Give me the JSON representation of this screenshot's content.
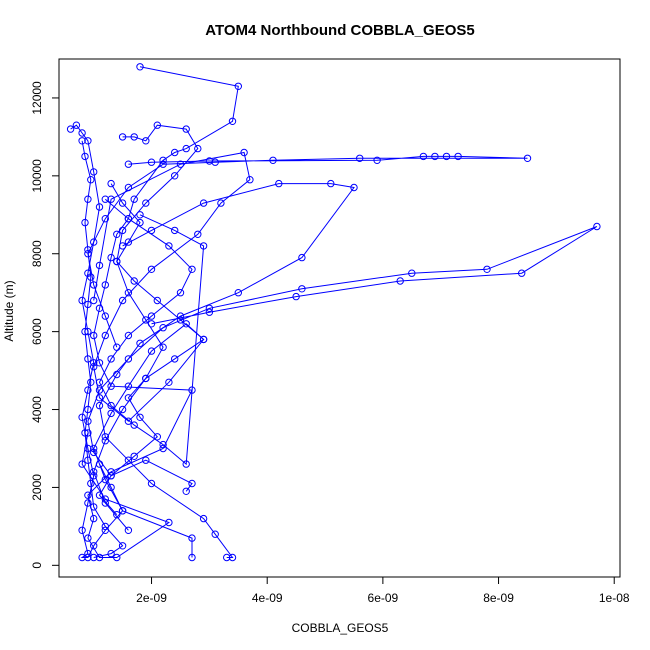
{
  "chart_data": {
    "type": "line",
    "title": "ATOM4 Northbound COBBLA_GEOS5",
    "xlabel": "COBBLA_GEOS5",
    "ylabel": "Altitude (m)",
    "xlim": [
      4e-10,
      1.01e-08
    ],
    "ylim": [
      -300,
      13000
    ],
    "x_ticks": [
      {
        "value": 2e-09,
        "label": "2e-09"
      },
      {
        "value": 4e-09,
        "label": "4e-09"
      },
      {
        "value": 6e-09,
        "label": "6e-09"
      },
      {
        "value": 8e-09,
        "label": "8e-09"
      },
      {
        "value": 1e-08,
        "label": "1e-08"
      }
    ],
    "y_ticks": [
      {
        "value": 0,
        "label": "0"
      },
      {
        "value": 2000,
        "label": "2000"
      },
      {
        "value": 4000,
        "label": "4000"
      },
      {
        "value": 6000,
        "label": "6000"
      },
      {
        "value": 8000,
        "label": "8000"
      },
      {
        "value": 10000,
        "label": "10000"
      },
      {
        "value": 12000,
        "label": "12000"
      }
    ],
    "grid": false,
    "colors": {
      "series": "#0000ff",
      "axes": "#000000",
      "background": "#ffffff"
    },
    "series": [
      {
        "marker": "open-circle",
        "x": [
          1.8e-09,
          3.5e-09,
          3.4e-09,
          2.6e-09,
          2.4e-09,
          2.2e-09,
          1.7e-09,
          1.6e-09,
          1.4e-09,
          1.3e-09,
          1.2e-09,
          1.1e-09,
          1e-09,
          1.1e-09,
          1.3e-09,
          2.7e-09,
          2.2e-09,
          1.3e-09,
          9e-10,
          1e-09,
          9e-10,
          1.1e-09,
          1.4e-09,
          2.3e-09,
          1.2e-09,
          8e-10,
          9e-10
        ],
        "y": [
          12800,
          12300,
          11400,
          10700,
          10600,
          10400,
          9400,
          8900,
          8500,
          7900,
          7200,
          6600,
          5900,
          5200,
          4600,
          4500,
          3000,
          2400,
          1800,
          1200,
          700,
          200,
          200,
          1100,
          1700,
          2600,
          3400
        ]
      },
      {
        "marker": "open-circle",
        "x": [
          1e-09,
          1.1e-09,
          1.3e-09,
          2.5e-09,
          3.6e-09,
          3.7e-09,
          3.2e-09,
          2.8e-09,
          2e-09,
          1.5e-09,
          1.2e-09,
          1e-09,
          1.1e-09,
          1.6e-09,
          2.3e-09,
          2.9e-09,
          2.6e-09,
          2e-09,
          1.6e-09,
          1.3e-09,
          1e-09,
          1.2e-09,
          1.5e-09,
          2.7e-09,
          2.7e-09
        ],
        "y": [
          6800,
          7700,
          9400,
          10300,
          10600,
          9900,
          9300,
          8500,
          7600,
          6800,
          5900,
          5100,
          4300,
          3700,
          4700,
          5800,
          6200,
          5500,
          4600,
          3900,
          3000,
          2200,
          1400,
          700,
          200
        ]
      },
      {
        "marker": "open-circle",
        "x": [
          1.5e-09,
          2e-09,
          2.9e-09,
          4.2e-09,
          5.1e-09,
          5.5e-09,
          4.6e-09,
          3.5e-09,
          2.5e-09,
          1.8e-09,
          1.4e-09,
          1.1e-09,
          1.2e-09,
          1.6e-09,
          2e-09,
          2.9e-09,
          3.1e-09,
          3.4e-09,
          3.3e-09
        ],
        "y": [
          8200,
          8600,
          9300,
          9800,
          9800,
          9700,
          7900,
          7000,
          6400,
          5700,
          4900,
          4100,
          3300,
          2700,
          2100,
          1200,
          800,
          200,
          200
        ]
      },
      {
        "marker": "open-circle",
        "x": [
          1.6e-09,
          2e-09,
          3e-09,
          5.9e-09,
          6.7e-09,
          6.9e-09,
          7.1e-09,
          7.3e-09,
          8.5e-09,
          5.6e-09,
          4.1e-09,
          3.1e-09,
          2.2e-09,
          1.6e-09,
          1.2e-09,
          9e-10,
          1e-09,
          1.2e-09,
          1.4e-09
        ],
        "y": [
          10300,
          10350,
          10380,
          10400,
          10500,
          10500,
          10500,
          10500,
          10450,
          10450,
          10400,
          10350,
          10300,
          9700,
          8900,
          8000,
          7200,
          6400,
          5600
        ]
      },
      {
        "marker": "open-circle",
        "x": [
          2e-09,
          3e-09,
          4.5e-09,
          6.3e-09,
          8.4e-09,
          9.7e-09,
          7.8e-09,
          6.5e-09,
          4.6e-09,
          3e-09,
          2.2e-09,
          1.6e-09,
          1.1e-09,
          9e-10,
          1e-09,
          1.3e-09,
          1.9e-09,
          2.7e-09,
          2.6e-09
        ],
        "y": [
          6200,
          6500,
          6900,
          7300,
          7500,
          8700,
          7600,
          7500,
          7100,
          6600,
          6100,
          5300,
          4500,
          3700,
          2900,
          2300,
          2700,
          2100,
          1900
        ]
      },
      {
        "marker": "open-circle",
        "x": [
          6e-10,
          7e-10,
          8e-10,
          9e-10,
          1e-09,
          1.1e-09,
          1e-09,
          9e-10,
          8e-10,
          9e-10,
          1e-09,
          9e-10,
          8e-10,
          9e-10,
          1e-09,
          9e-10,
          8e-10,
          9e-10,
          8e-10,
          9e-10,
          1e-09,
          1.2e-09,
          1.5e-09,
          1.3e-09,
          1.1e-09
        ],
        "y": [
          11200,
          11300,
          11100,
          10900,
          10100,
          9200,
          8300,
          7500,
          6800,
          6000,
          5200,
          4500,
          3800,
          3000,
          2300,
          1600,
          900,
          300,
          200,
          200,
          500,
          900,
          1400,
          2000,
          2600
        ]
      },
      {
        "marker": "open-circle",
        "x": [
          1.5e-09,
          1.7e-09,
          1.9e-09,
          2.1e-09,
          2.6e-09,
          2.8e-09,
          2.4e-09,
          1.9e-09,
          1.5e-09,
          1.4e-09,
          1.6e-09,
          1.9e-09,
          2.2e-09,
          1.9e-09,
          1.5e-09,
          1.2e-09,
          1e-09,
          1.2e-09,
          1.6e-09
        ],
        "y": [
          11000,
          11000,
          10900,
          11300,
          11200,
          10700,
          10000,
          9300,
          8600,
          7800,
          7000,
          6300,
          5600,
          4800,
          4000,
          3200,
          2400,
          1600,
          900
        ]
      },
      {
        "marker": "open-circle",
        "x": [
          8e-10,
          8.5e-10,
          9.5e-10,
          9e-10,
          8.5e-10,
          9e-10,
          9.5e-10,
          9e-10,
          8.5e-10,
          9e-10,
          9.5e-10,
          9e-10,
          8.5e-10,
          9e-10,
          9.5e-10,
          1e-09,
          1.2e-09,
          1.5e-09,
          1.3e-09,
          1e-09
        ],
        "y": [
          10900,
          10500,
          9900,
          9400,
          8800,
          8100,
          7400,
          6700,
          6000,
          5300,
          4700,
          4000,
          3400,
          2700,
          2100,
          1500,
          1000,
          500,
          300,
          200
        ]
      },
      {
        "marker": "open-circle",
        "x": [
          1.3e-09,
          1.5e-09,
          1.8e-09,
          1.6e-09,
          1.4e-09,
          1.7e-09,
          2.1e-09,
          2.5e-09,
          2.9e-09,
          2.4e-09,
          1.9e-09,
          1.6e-09,
          1.8e-09,
          2.1e-09,
          1.7e-09,
          1.3e-09,
          1.1e-09,
          1.4e-09
        ],
        "y": [
          9800,
          9300,
          8800,
          8300,
          7800,
          7300,
          6800,
          6300,
          5800,
          5300,
          4800,
          4300,
          3800,
          3300,
          2800,
          2300,
          1800,
          1300
        ]
      },
      {
        "marker": "open-circle",
        "x": [
          1.2e-09,
          1.6e-09,
          2.3e-09,
          2.7e-09,
          2.5e-09,
          2e-09,
          1.6e-09,
          1.3e-09,
          1.1e-09,
          1.3e-09,
          1.7e-09,
          2.2e-09,
          2.6e-09,
          2.9e-09,
          2.4e-09,
          1.8e-09
        ],
        "y": [
          9400,
          8900,
          8200,
          7600,
          7000,
          6400,
          5900,
          5300,
          4700,
          4100,
          3600,
          3100,
          2600,
          8200,
          8600,
          9000
        ]
      }
    ]
  }
}
